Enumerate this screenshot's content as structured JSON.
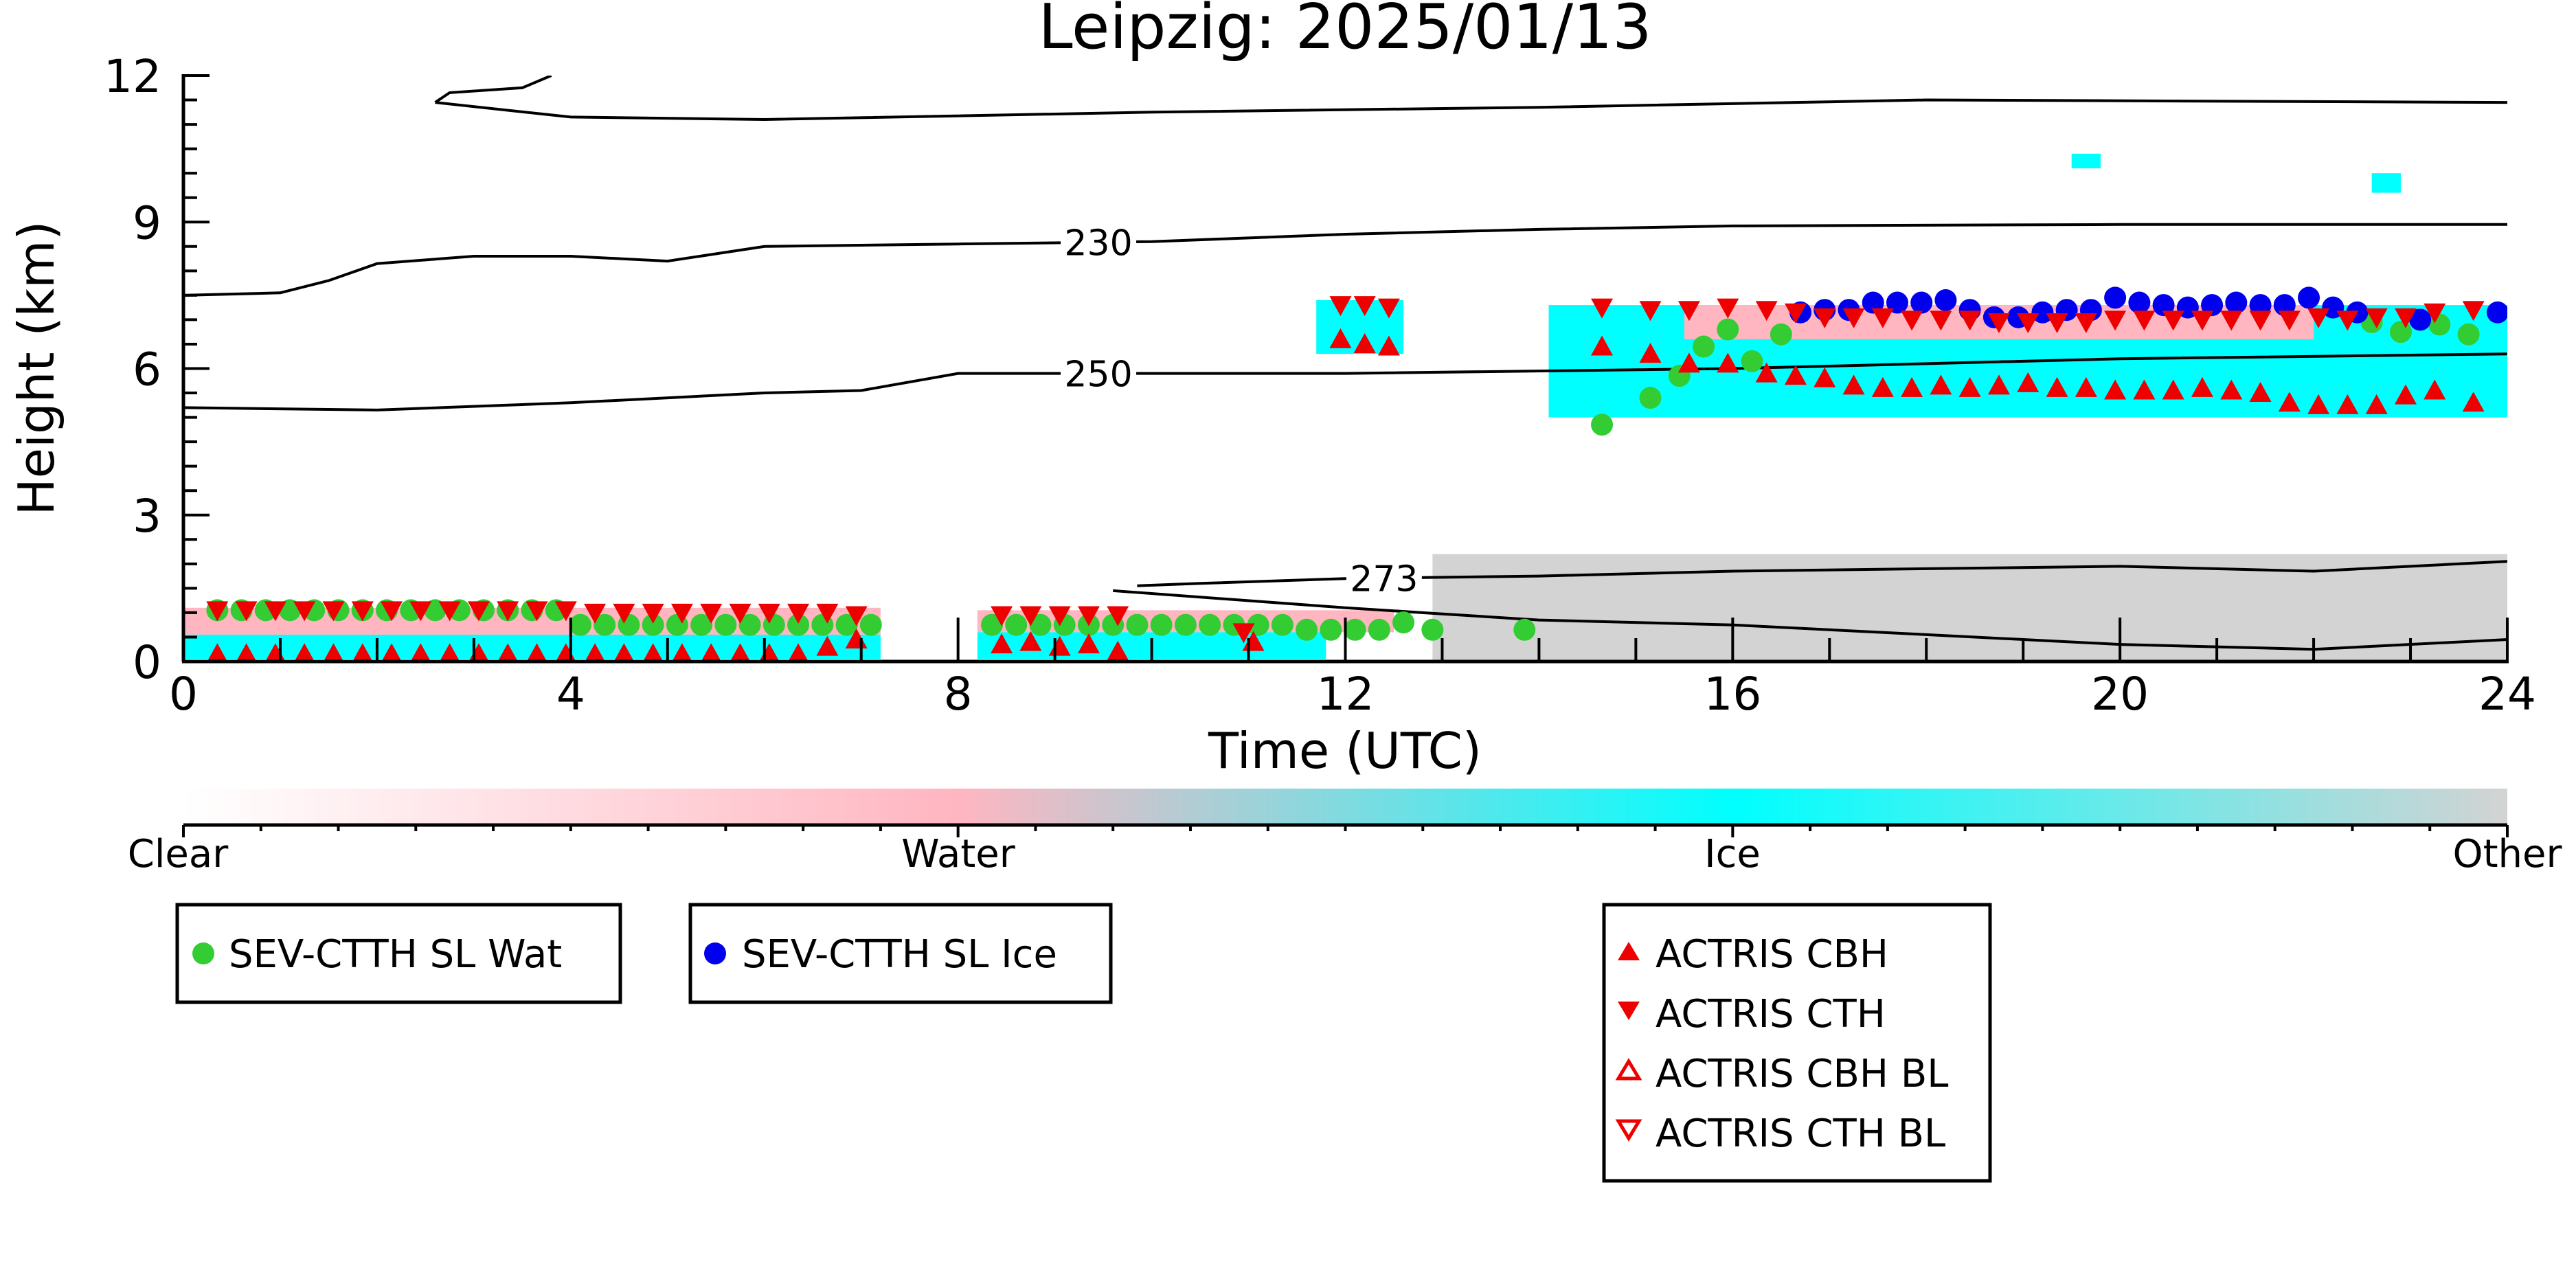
{
  "chart_data": {
    "type": "scatter",
    "title": "Leipzig: 2025/01/13",
    "xlabel": "Time (UTC)",
    "ylabel": "Height (km)",
    "xlim": [
      0,
      24
    ],
    "ylim": [
      0,
      12
    ],
    "x_ticks": [
      "0",
      "4",
      "8",
      "12",
      "16",
      "20",
      "24"
    ],
    "y_ticks": [
      "0",
      "3",
      "6",
      "9",
      "12"
    ],
    "x_tick_values": [
      0,
      4,
      8,
      12,
      16,
      20,
      24
    ],
    "y_tick_values": [
      0,
      3,
      6,
      9,
      12
    ],
    "grid": false,
    "colors": {
      "clear": "#ffffff",
      "water": "#ffb6c1",
      "ice": "#00ffff",
      "other": "#d3d3d3",
      "sev_water": "#33cc33",
      "sev_ice": "#0000ee",
      "actris": "#ee0000"
    },
    "colorbar": {
      "labels": [
        "Clear",
        "Water",
        "Ice",
        "Other"
      ],
      "stops": [
        0,
        0.333,
        0.667,
        1.0
      ]
    },
    "isotherms": [
      {
        "label": "230",
        "label_x": 9.45,
        "points": [
          [
            0,
            7.5
          ],
          [
            1,
            7.55
          ],
          [
            1.5,
            7.8
          ],
          [
            2,
            8.15
          ],
          [
            3,
            8.3
          ],
          [
            4,
            8.3
          ],
          [
            5,
            8.2
          ],
          [
            6,
            8.5
          ],
          [
            8,
            8.55
          ],
          [
            10,
            8.6
          ],
          [
            12,
            8.75
          ],
          [
            14,
            8.85
          ],
          [
            16,
            8.92
          ],
          [
            20,
            8.95
          ],
          [
            24,
            8.95
          ]
        ]
      },
      {
        "label": "250",
        "label_x": 9.45,
        "points": [
          [
            0,
            5.2
          ],
          [
            2,
            5.15
          ],
          [
            4,
            5.3
          ],
          [
            6,
            5.5
          ],
          [
            7,
            5.55
          ],
          [
            8,
            5.9
          ],
          [
            12,
            5.9
          ],
          [
            16,
            6.0
          ],
          [
            18,
            6.1
          ],
          [
            20,
            6.2
          ],
          [
            24,
            6.3
          ]
        ]
      },
      {
        "label": "273",
        "label_x": 12.4,
        "points": [
          [
            9.85,
            1.55
          ],
          [
            10.5,
            1.6
          ],
          [
            12,
            1.7
          ],
          [
            14,
            1.75
          ],
          [
            16,
            1.85
          ],
          [
            18,
            1.9
          ],
          [
            20,
            1.95
          ],
          [
            22,
            1.85
          ],
          [
            24,
            2.05
          ]
        ]
      },
      {
        "label": "",
        "label_x": null,
        "points": [
          [
            9.6,
            1.45
          ],
          [
            12,
            1.1
          ],
          [
            14,
            0.85
          ],
          [
            16,
            0.75
          ],
          [
            18,
            0.55
          ],
          [
            20,
            0.35
          ],
          [
            22,
            0.25
          ],
          [
            24,
            0.45
          ]
        ]
      },
      {
        "label": "",
        "label_x": null,
        "points": [
          [
            2.6,
            11.45
          ],
          [
            4,
            11.15
          ],
          [
            6,
            11.1
          ],
          [
            10,
            11.25
          ],
          [
            14,
            11.35
          ],
          [
            18,
            11.5
          ],
          [
            24,
            11.45
          ]
        ]
      },
      {
        "label": "",
        "label_x": null,
        "points": [
          [
            2.6,
            11.45
          ],
          [
            2.75,
            11.65
          ],
          [
            3.5,
            11.75
          ],
          [
            3.8,
            12.0
          ]
        ]
      }
    ],
    "cloud_regions": [
      {
        "phase": "other",
        "x": [
          12.9,
          24
        ],
        "y": [
          0,
          2.2
        ]
      },
      {
        "phase": "water",
        "x": [
          0,
          7.2
        ],
        "y": [
          0.55,
          1.1
        ]
      },
      {
        "phase": "water",
        "x": [
          8.2,
          12.5
        ],
        "y": [
          0.6,
          1.05
        ]
      },
      {
        "phase": "ice",
        "x": [
          0,
          7.2
        ],
        "y": [
          0.05,
          0.55
        ]
      },
      {
        "phase": "ice",
        "x": [
          8.2,
          11.8
        ],
        "y": [
          0.05,
          0.6
        ]
      },
      {
        "phase": "ice",
        "x": [
          11.7,
          12.6
        ],
        "y": [
          6.3,
          7.4
        ]
      },
      {
        "phase": "ice",
        "x": [
          14.1,
          24
        ],
        "y": [
          5.0,
          7.3
        ]
      },
      {
        "phase": "water",
        "x": [
          15.5,
          22
        ],
        "y": [
          6.6,
          7.3
        ]
      },
      {
        "phase": "ice",
        "x": [
          19.5,
          19.8
        ],
        "y": [
          10.1,
          10.4
        ]
      },
      {
        "phase": "ice",
        "x": [
          22.6,
          22.9
        ],
        "y": [
          9.6,
          10.0
        ]
      }
    ],
    "series": [
      {
        "name": "SEV-CTTH SL Wat",
        "marker": "circle",
        "x": [
          0.35,
          0.6,
          0.85,
          1.1,
          1.35,
          1.6,
          1.85,
          2.1,
          2.35,
          2.6,
          2.85,
          3.1,
          3.35,
          3.6,
          3.85,
          4.1,
          4.35,
          4.6,
          4.85,
          5.1,
          5.35,
          5.6,
          5.85,
          6.1,
          6.35,
          6.6,
          6.85,
          7.1,
          8.35,
          8.6,
          8.85,
          9.1,
          9.35,
          9.6,
          9.85,
          10.1,
          10.35,
          10.6,
          10.85,
          11.1,
          11.35,
          11.6,
          11.85,
          12.1,
          12.35,
          12.6,
          12.9,
          13.85,
          14.65,
          15.15,
          15.45,
          15.7,
          15.95,
          16.2,
          16.5,
          22.6,
          22.9,
          23.3,
          23.6
        ],
        "y": [
          1.05,
          1.05,
          1.05,
          1.05,
          1.05,
          1.05,
          1.05,
          1.05,
          1.05,
          1.05,
          1.05,
          1.05,
          1.05,
          1.05,
          1.05,
          0.75,
          0.75,
          0.75,
          0.75,
          0.75,
          0.75,
          0.75,
          0.75,
          0.75,
          0.75,
          0.75,
          0.75,
          0.75,
          0.75,
          0.75,
          0.75,
          0.75,
          0.75,
          0.75,
          0.75,
          0.75,
          0.75,
          0.75,
          0.75,
          0.75,
          0.75,
          0.65,
          0.65,
          0.65,
          0.65,
          0.8,
          0.65,
          0.65,
          4.85,
          5.4,
          5.85,
          6.45,
          6.8,
          6.15,
          6.7,
          6.95,
          6.75,
          6.9,
          6.7
        ]
      },
      {
        "name": "SEV-CTTH SL Ice",
        "marker": "circle",
        "x": [
          16.7,
          16.95,
          17.2,
          17.45,
          17.7,
          17.95,
          18.2,
          18.45,
          18.7,
          18.95,
          19.2,
          19.45,
          19.7,
          19.95,
          20.2,
          20.45,
          20.7,
          20.95,
          21.2,
          21.45,
          21.7,
          21.95,
          22.2,
          22.45,
          23.1,
          23.9
        ],
        "y": [
          7.15,
          7.2,
          7.2,
          7.35,
          7.35,
          7.35,
          7.4,
          7.2,
          7.05,
          7.05,
          7.15,
          7.2,
          7.2,
          7.45,
          7.35,
          7.3,
          7.25,
          7.3,
          7.35,
          7.3,
          7.3,
          7.45,
          7.25,
          7.15,
          7.0,
          7.15
        ]
      },
      {
        "name": "ACTRIS CBH",
        "marker": "triangle-up",
        "x": [
          0.35,
          0.65,
          0.95,
          1.25,
          1.55,
          1.85,
          2.15,
          2.45,
          2.75,
          3.05,
          3.35,
          3.65,
          3.95,
          4.25,
          4.55,
          4.85,
          5.15,
          5.45,
          5.75,
          6.05,
          6.35,
          6.65,
          6.95,
          8.45,
          8.75,
          9.05,
          9.35,
          9.65,
          11.05,
          11.95,
          12.2,
          12.45,
          14.65,
          15.15,
          15.55,
          15.95,
          16.35,
          16.65,
          16.95,
          17.25,
          17.55,
          17.85,
          18.15,
          18.45,
          18.75,
          19.05,
          19.35,
          19.65,
          19.95,
          20.25,
          20.55,
          20.85,
          21.15,
          21.45,
          21.75,
          22.05,
          22.35,
          22.65,
          22.95,
          23.25,
          23.65
        ],
        "y": [
          0.15,
          0.15,
          0.15,
          0.15,
          0.15,
          0.15,
          0.15,
          0.15,
          0.15,
          0.15,
          0.15,
          0.15,
          0.15,
          0.15,
          0.15,
          0.15,
          0.15,
          0.15,
          0.15,
          0.15,
          0.15,
          0.3,
          0.45,
          0.35,
          0.4,
          0.3,
          0.35,
          0.2,
          0.4,
          6.6,
          6.5,
          6.45,
          6.45,
          6.3,
          6.1,
          6.1,
          5.9,
          5.85,
          5.8,
          5.65,
          5.6,
          5.6,
          5.65,
          5.6,
          5.65,
          5.7,
          5.6,
          5.6,
          5.55,
          5.55,
          5.55,
          5.6,
          5.55,
          5.5,
          5.3,
          5.25,
          5.25,
          5.25,
          5.45,
          5.55,
          5.3
        ]
      },
      {
        "name": "ACTRIS CTH",
        "marker": "triangle-down",
        "x": [
          0.35,
          0.65,
          0.95,
          1.25,
          1.55,
          1.85,
          2.15,
          2.45,
          2.75,
          3.05,
          3.35,
          3.65,
          3.95,
          4.25,
          4.55,
          4.85,
          5.15,
          5.45,
          5.75,
          6.05,
          6.35,
          6.65,
          6.95,
          8.45,
          8.75,
          9.05,
          9.35,
          9.65,
          10.95,
          11.95,
          12.2,
          12.45,
          14.65,
          15.15,
          15.55,
          15.95,
          16.35,
          16.65,
          16.95,
          17.25,
          17.55,
          17.85,
          18.15,
          18.45,
          18.75,
          19.05,
          19.35,
          19.65,
          19.95,
          20.25,
          20.55,
          20.85,
          21.15,
          21.45,
          21.75,
          22.05,
          22.35,
          22.65,
          22.95,
          23.25,
          23.65
        ],
        "y": [
          1.05,
          1.05,
          1.05,
          1.05,
          1.05,
          1.05,
          1.05,
          1.05,
          1.05,
          1.05,
          1.05,
          1.05,
          1.05,
          1.0,
          1.0,
          1.0,
          1.0,
          1.0,
          1.0,
          1.0,
          1.0,
          1.0,
          0.95,
          0.95,
          0.95,
          0.95,
          0.95,
          0.95,
          0.6,
          7.3,
          7.3,
          7.25,
          7.25,
          7.2,
          7.2,
          7.25,
          7.2,
          7.15,
          7.05,
          7.05,
          7.05,
          7.0,
          7.0,
          7.0,
          6.95,
          6.95,
          6.95,
          6.95,
          7.0,
          7.0,
          7.0,
          7.0,
          7.0,
          7.0,
          7.0,
          7.05,
          7.0,
          7.05,
          7.05,
          7.15,
          7.2
        ]
      },
      {
        "name": "ACTRIS CBH BL",
        "marker": "triangle-up-open",
        "x": [],
        "y": []
      },
      {
        "name": "ACTRIS CTH BL",
        "marker": "triangle-down-open",
        "x": [],
        "y": []
      }
    ],
    "legends": [
      {
        "entries": [
          "SEV-CTTH SL Wat"
        ]
      },
      {
        "entries": [
          "SEV-CTTH SL Ice"
        ]
      },
      {
        "entries": [
          "ACTRIS CBH",
          "ACTRIS CTH",
          "ACTRIS CBH BL",
          "ACTRIS CTH BL"
        ]
      }
    ]
  }
}
